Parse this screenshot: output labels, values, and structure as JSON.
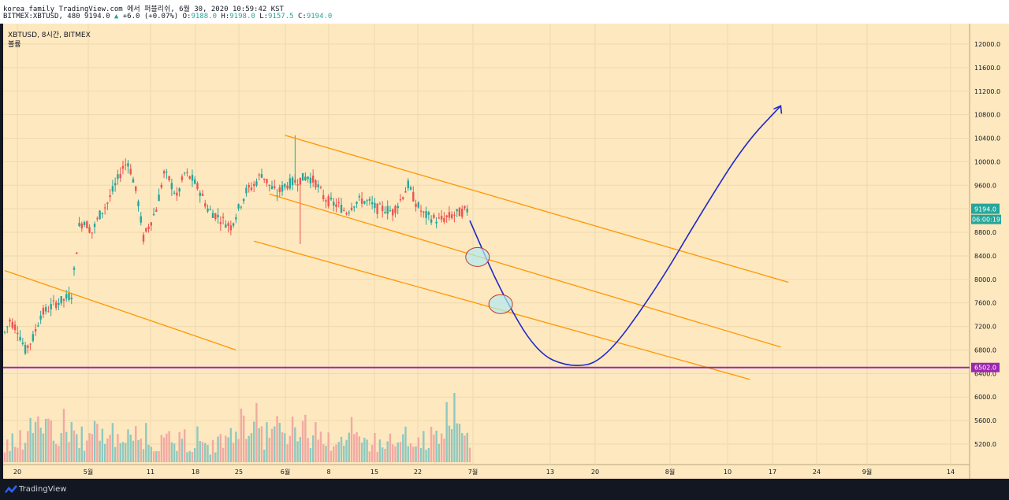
{
  "header": {
    "publish_line": "korea_family TradingView.com 에서 퍼블리쉬, 6월 30, 2020 10:59:42 KST",
    "symbol": "BITMEX:XBTUSD",
    "interval": "480",
    "price": "9194.0",
    "change_arrow": "▲",
    "change": "+6.0 (+0.07%)",
    "open_label": "O:",
    "open": "9188.0",
    "high_label": "H:",
    "high": "9198.0",
    "low_label": "L:",
    "low": "9157.5",
    "close_label": "C:",
    "close": "9194.0"
  },
  "legend": {
    "title": "XBTUSD, 8시간, BITMEX",
    "volume_label": "볼륨"
  },
  "footer": {
    "brand": "TradingView"
  },
  "colors": {
    "background": "#fde8c0",
    "up": "#26a69a",
    "down": "#ef5350",
    "channel": "#ff9800",
    "support": "#9c27b0",
    "projection": "#1e28c8",
    "target_circle": "#b2ebf2"
  },
  "chart_data": {
    "type": "candlestick",
    "symbol": "XBTUSD",
    "interval": "8시간",
    "exchange": "BITMEX",
    "ylim": [
      5000,
      12400
    ],
    "y_ticks": [
      "12000.0",
      "11600.0",
      "11200.0",
      "10800.0",
      "10400.0",
      "10000.0",
      "9600.0",
      "9200.0",
      "8800.0",
      "8400.0",
      "8000.0",
      "7600.0",
      "7200.0",
      "6800.0",
      "6400.0",
      "6000.0",
      "5600.0",
      "5200.0"
    ],
    "x_ticks": [
      "20",
      "5월",
      "11",
      "18",
      "25",
      "6월",
      "8",
      "15",
      "22",
      "7월",
      "13",
      "20",
      "8월",
      "10",
      "17",
      "24",
      "9월",
      "14"
    ],
    "last_price": "9194.0",
    "countdown": "06:00:19",
    "support_level": "6502.0",
    "price_path": [
      [
        0,
        7100
      ],
      [
        2,
        7300
      ],
      [
        5,
        7150
      ],
      [
        8,
        6800
      ],
      [
        11,
        7000
      ],
      [
        14,
        7400
      ],
      [
        17,
        7500
      ],
      [
        20,
        7600
      ],
      [
        23,
        7650
      ],
      [
        26,
        7750
      ],
      [
        29,
        8900
      ],
      [
        31,
        9000
      ],
      [
        34,
        8800
      ],
      [
        37,
        9100
      ],
      [
        40,
        9300
      ],
      [
        43,
        9600
      ],
      [
        46,
        9900
      ],
      [
        48,
        10000
      ],
      [
        50,
        9700
      ],
      [
        52,
        9300
      ],
      [
        54,
        8700
      ],
      [
        56,
        8900
      ],
      [
        59,
        9200
      ],
      [
        62,
        9800
      ],
      [
        64,
        9700
      ],
      [
        67,
        9400
      ],
      [
        70,
        9800
      ],
      [
        73,
        9700
      ],
      [
        76,
        9500
      ],
      [
        79,
        9200
      ],
      [
        82,
        9100
      ],
      [
        85,
        9000
      ],
      [
        88,
        8900
      ],
      [
        91,
        9200
      ],
      [
        94,
        9500
      ],
      [
        97,
        9600
      ],
      [
        100,
        9800
      ],
      [
        103,
        9600
      ],
      [
        106,
        9450
      ],
      [
        109,
        9600
      ],
      [
        112,
        9650
      ],
      [
        115,
        9700
      ],
      [
        118,
        9750
      ],
      [
        121,
        9650
      ],
      [
        124,
        9400
      ],
      [
        127,
        9300
      ],
      [
        130,
        9250
      ],
      [
        133,
        9150
      ],
      [
        136,
        9300
      ],
      [
        139,
        9350
      ],
      [
        142,
        9300
      ],
      [
        145,
        9200
      ],
      [
        148,
        9200
      ],
      [
        151,
        9150
      ],
      [
        154,
        9350
      ],
      [
        157,
        9600
      ],
      [
        160,
        9300
      ],
      [
        163,
        9100
      ],
      [
        166,
        9050
      ],
      [
        169,
        9000
      ],
      [
        172,
        9050
      ],
      [
        175,
        9100
      ],
      [
        178,
        9150
      ],
      [
        181,
        9194
      ]
    ],
    "volume": [
      0.15,
      0.22,
      0.18,
      0.3,
      0.25,
      0.2,
      0.35,
      0.28,
      0.3,
      0.4,
      0.55,
      0.45,
      0.5,
      0.4,
      0.35,
      0.6,
      0.45,
      0.38,
      0.5,
      0.42,
      0.3,
      0.28,
      0.35,
      0.45,
      0.4,
      0.32,
      0.5,
      0.38,
      0.3,
      0.28,
      0.33,
      0.25,
      0.4,
      0.3,
      0.28,
      0.35,
      0.5,
      0.42,
      0.3,
      0.25,
      0.3,
      0.45,
      0.35,
      0.28,
      0.4,
      0.3,
      0.25,
      0.22,
      0.3,
      0.26,
      0.35,
      0.3,
      0.28,
      0.25,
      0.3,
      0.38,
      0.3,
      0.25,
      0.22,
      0.2,
      0.25,
      0.28,
      0.22,
      0.3,
      0.26,
      0.2,
      0.22,
      0.18,
      0.25,
      0.2,
      0.3,
      0.22,
      0.18,
      0.2,
      0.25,
      0.35,
      0.3,
      0.2,
      0.18,
      0.15
    ],
    "annotations": {
      "channels": [
        {
          "label": "channel-1",
          "points": [
            [
              0,
              8150
            ],
            [
              90,
              6800
            ]
          ]
        },
        {
          "label": "channel-2",
          "points": [
            [
              109,
              10450
            ],
            [
              305,
              7950
            ]
          ]
        },
        {
          "label": "channel-3",
          "points": [
            [
              103,
              9450
            ],
            [
              302,
              6850
            ]
          ]
        },
        {
          "label": "channel-4",
          "points": [
            [
              97,
              8650
            ],
            [
              290,
              6300
            ]
          ]
        }
      ],
      "projection": [
        [
          181,
          9000
        ],
        [
          183,
          8800
        ],
        [
          193,
          7800
        ],
        [
          207,
          6750
        ],
        [
          220,
          6500
        ],
        [
          233,
          6600
        ],
        [
          253,
          7800
        ],
        [
          272,
          9200
        ],
        [
          288,
          10300
        ],
        [
          302,
          10950
        ]
      ],
      "circles": [
        [
          184,
          8380
        ],
        [
          193,
          7580
        ]
      ]
    }
  }
}
